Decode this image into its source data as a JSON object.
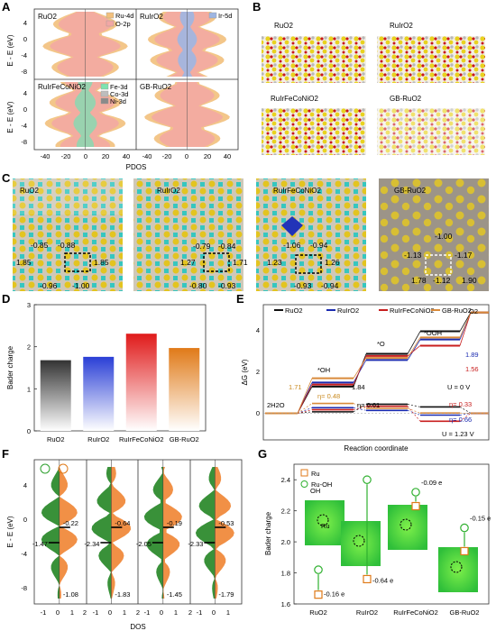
{
  "panels": {
    "A": {
      "letter": "A",
      "subpanels": [
        "RuO2",
        "RuIrO2",
        "RuIrFeCoNiO2",
        "GB-RuO2"
      ],
      "legend_top_left": [
        "Ru-4d",
        "O-2p"
      ],
      "legend_top_right": [
        "Ir-5d"
      ],
      "legend_bottom_left": [
        "Fe-3d",
        "Co-3d",
        "Ni-3d"
      ],
      "ylabel": "E - E (eV)",
      "xlabel": "PDOS",
      "yticks": [
        "4",
        "0",
        "-4",
        "-8"
      ],
      "xticks": [
        "-40",
        "-20",
        "0",
        "20",
        "40",
        "-40",
        "-20",
        "0",
        "20",
        "40"
      ]
    },
    "B": {
      "letter": "B",
      "labels": [
        "RuO2",
        "RuIrO2",
        "RuIrFeCoNiO2",
        "GB-RuO2"
      ]
    },
    "C": {
      "letter": "C",
      "labels": [
        "RuO2",
        "RuIrO2",
        "RuIrFeCoNiO2",
        "GB-RuO2"
      ],
      "values": [
        [
          "-0.85",
          "-0.88",
          "1.85",
          "1.85",
          "-0.96",
          "-1.00"
        ],
        [
          "-0.79",
          "-0.84",
          "1.27",
          "1.71",
          "-0.80",
          "-0.93"
        ],
        [
          "-1.06",
          "-0.94",
          "1.23",
          "1.26",
          "-0.93",
          "-0.94"
        ],
        [
          "-1.00",
          "-1.13",
          "-1.17",
          "1.78",
          "-1.12",
          "1.90"
        ]
      ]
    },
    "D": {
      "letter": "D",
      "chart_data": {
        "type": "bar",
        "categories": [
          "RuO2",
          "RuIrO2",
          "RuIrFeCoNiO2",
          "GB-RuO2"
        ],
        "values": [
          1.68,
          1.76,
          2.31,
          1.97
        ],
        "ylabel": "Bader charge",
        "ylim": [
          0,
          3
        ],
        "yticks": [
          "0",
          "1",
          "2",
          "3"
        ],
        "colors": [
          "#555555",
          "#2a3fd6",
          "#e01a1a",
          "#e07a18"
        ]
      }
    },
    "E": {
      "letter": "E",
      "chart_data": {
        "type": "line",
        "series": [
          {
            "name": "RuO2",
            "color": "#111111"
          },
          {
            "name": "RuIrO2",
            "color": "#1b2bb0"
          },
          {
            "name": "RuIrFeCoNiO2",
            "color": "#c81e1e"
          },
          {
            "name": "GB-RuO2",
            "color": "#d98a3a"
          }
        ],
        "ylabel": "ΔG (eV)",
        "xlabel": "Reaction coordinate",
        "yticks": [
          "0",
          "2",
          "4"
        ],
        "ylim": [
          -1.3,
          5.3
        ],
        "steps": [
          "2H2O",
          "*OH",
          "*O",
          "*OOH",
          "O2"
        ],
        "annotations": [
          "1.71",
          "η= 0.48",
          "1.84",
          "η= 0.61",
          "1.89",
          "1.56",
          "U = 0 V",
          "η= 0.33",
          "η= 0.66",
          "U = 1.23 V"
        ]
      }
    },
    "F": {
      "letter": "F",
      "ylabel": "E - E (eV)",
      "xlabel": "DOS",
      "yticks": [
        "4",
        "0",
        "-4",
        "-8"
      ],
      "xticks": [
        "-1",
        "0",
        "1",
        "2",
        "-1",
        "0",
        "1",
        "2",
        "-1",
        "0",
        "1",
        "2",
        "-1",
        "0",
        "1"
      ],
      "values": [
        [
          "-0.22",
          "-1.47",
          "-1.08"
        ],
        [
          "-0.64",
          "-2.34",
          "-1.83"
        ],
        [
          "-0.19",
          "-2.05",
          "-1.45"
        ],
        [
          "-0.53",
          "-2.33",
          "-1.79"
        ]
      ]
    },
    "G": {
      "letter": "G",
      "chart_data": {
        "type": "scatter",
        "categories": [
          "RuO2",
          "RuIrO2",
          "RuIrFeCoNiO2",
          "GB-RuO2"
        ],
        "series": [
          {
            "name": "Ru",
            "values": [
              1.66,
              1.76,
              2.23,
              1.94
            ],
            "color": "#e07a18"
          },
          {
            "name": "Ru-OH",
            "values": [
              1.82,
              2.4,
              2.32,
              2.09
            ],
            "color": "#2fb02f"
          }
        ],
        "deltas": [
          "-0.16 e",
          "-0.64 e",
          "-0.09 e",
          "-0.15 e"
        ],
        "ylabel": "Bader charge",
        "ylim": [
          1.6,
          2.5
        ],
        "yticks": [
          "1.6",
          "1.8",
          "2.0",
          "2.2",
          "2.4"
        ],
        "inset_labels": [
          "OH",
          "Ru"
        ]
      }
    }
  }
}
